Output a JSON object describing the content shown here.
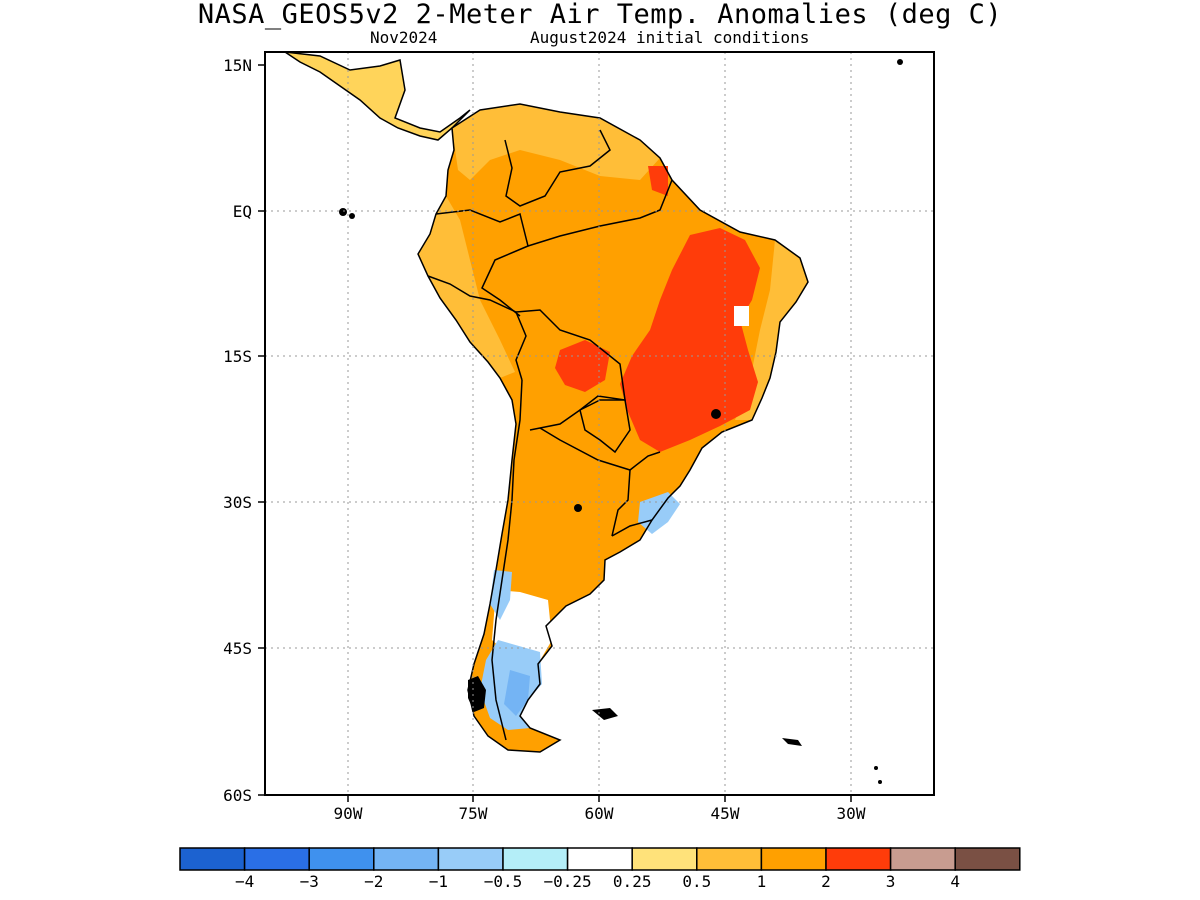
{
  "title": "NASA_GEOS5v2 2-Meter Air Temp. Anomalies (deg C)",
  "subtitle_left": "Nov2024",
  "subtitle_right": "August2024 initial conditions",
  "map": {
    "lat_labels": [
      "15N",
      "EQ",
      "15S",
      "30S",
      "45S",
      "60S"
    ],
    "lon_labels": [
      "90W",
      "75W",
      "60W",
      "45W",
      "30W"
    ],
    "lon_range": [
      -100,
      -20
    ],
    "lat_range": [
      -60,
      15
    ],
    "grid": "dotted"
  },
  "colorbar": {
    "colors": [
      "#1c62d0",
      "#2a6fe6",
      "#3f91ee",
      "#74b4f4",
      "#98ccf8",
      "#b4eef8",
      "#ffffff",
      "#ffe27a",
      "#ffbe38",
      "#ffa000",
      "#ff3c0a",
      "#c89c90",
      "#7a5044"
    ],
    "labels": [
      "−4",
      "−3",
      "−2",
      "−1",
      "−0.5",
      "−0.25",
      "0.25",
      "0.5",
      "1",
      "2",
      "3",
      "4"
    ]
  }
}
